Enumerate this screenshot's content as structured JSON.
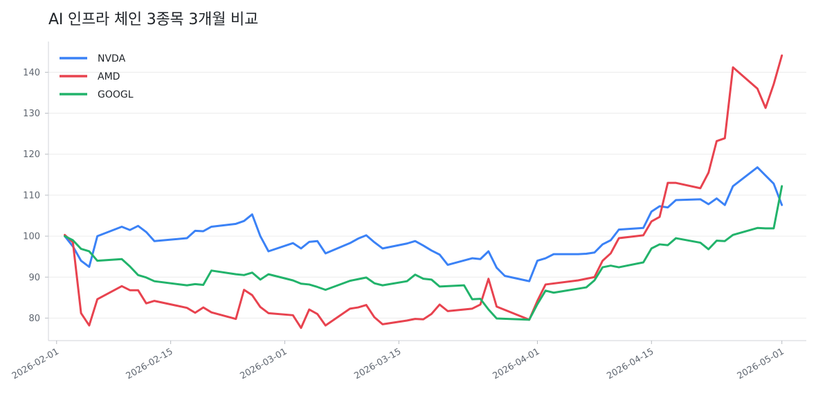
{
  "title": "AI 인프라 체인 3종목 3개월 비교",
  "chart_data": {
    "type": "line",
    "title": "AI 인프라 체인 3종목 3개월 비교",
    "xlabel": "",
    "ylabel": "",
    "x_type": "date",
    "xlim": [
      "2026-01-31",
      "2026-05-04"
    ],
    "ylim": [
      74.5,
      147.5
    ],
    "y_ticks": [
      80,
      90,
      100,
      110,
      120,
      130,
      140
    ],
    "x_ticks": [
      "2026-02-01",
      "2026-02-15",
      "2026-03-01",
      "2026-03-15",
      "2026-04-01",
      "2026-04-15",
      "2026-05-01"
    ],
    "grid": "horizontal",
    "legend_position": "top-left",
    "series": [
      {
        "name": "NVDA",
        "color": "#3b82f6",
        "points": [
          [
            "2026-02-02",
            100.0
          ],
          [
            "2026-02-03",
            97.5
          ],
          [
            "2026-02-04",
            94.0
          ],
          [
            "2026-02-05",
            92.5
          ],
          [
            "2026-02-06",
            100.0
          ],
          [
            "2026-02-09",
            102.3
          ],
          [
            "2026-02-10",
            101.5
          ],
          [
            "2026-02-11",
            102.5
          ],
          [
            "2026-02-12",
            101.0
          ],
          [
            "2026-02-13",
            98.8
          ],
          [
            "2026-02-17",
            99.5
          ],
          [
            "2026-02-18",
            101.3
          ],
          [
            "2026-02-19",
            101.2
          ],
          [
            "2026-02-20",
            102.3
          ],
          [
            "2026-02-23",
            103.0
          ],
          [
            "2026-02-24",
            103.7
          ],
          [
            "2026-02-25",
            105.3
          ],
          [
            "2026-02-26",
            100.0
          ],
          [
            "2026-02-27",
            96.3
          ],
          [
            "2026-03-02",
            98.3
          ],
          [
            "2026-03-03",
            97.0
          ],
          [
            "2026-03-04",
            98.6
          ],
          [
            "2026-03-05",
            98.8
          ],
          [
            "2026-03-06",
            95.8
          ],
          [
            "2026-03-09",
            98.3
          ],
          [
            "2026-03-10",
            99.4
          ],
          [
            "2026-03-11",
            100.2
          ],
          [
            "2026-03-12",
            98.5
          ],
          [
            "2026-03-13",
            97.0
          ],
          [
            "2026-03-16",
            98.2
          ],
          [
            "2026-03-17",
            98.8
          ],
          [
            "2026-03-18",
            97.7
          ],
          [
            "2026-03-19",
            96.5
          ],
          [
            "2026-03-20",
            95.5
          ],
          [
            "2026-03-21",
            93.0
          ],
          [
            "2026-03-24",
            94.6
          ],
          [
            "2026-03-25",
            94.4
          ],
          [
            "2026-03-26",
            96.3
          ],
          [
            "2026-03-27",
            92.3
          ],
          [
            "2026-03-28",
            90.3
          ],
          [
            "2026-03-31",
            89.0
          ],
          [
            "2026-04-01",
            94.0
          ],
          [
            "2026-04-02",
            94.6
          ],
          [
            "2026-04-03",
            95.6
          ],
          [
            "2026-04-06",
            95.6
          ],
          [
            "2026-04-07",
            95.7
          ],
          [
            "2026-04-08",
            96.0
          ],
          [
            "2026-04-09",
            98.0
          ],
          [
            "2026-04-10",
            99.0
          ],
          [
            "2026-04-11",
            101.6
          ],
          [
            "2026-04-14",
            102.0
          ],
          [
            "2026-04-15",
            106.0
          ],
          [
            "2026-04-16",
            107.3
          ],
          [
            "2026-04-17",
            107.0
          ],
          [
            "2026-04-18",
            108.8
          ],
          [
            "2026-04-21",
            109.0
          ],
          [
            "2026-04-22",
            107.8
          ],
          [
            "2026-04-23",
            109.2
          ],
          [
            "2026-04-24",
            107.6
          ],
          [
            "2026-04-25",
            112.2
          ],
          [
            "2026-04-28",
            116.8
          ],
          [
            "2026-04-29",
            114.8
          ],
          [
            "2026-04-30",
            112.8
          ],
          [
            "2026-05-01",
            107.6
          ]
        ]
      },
      {
        "name": "AMD",
        "color": "#e8434f",
        "points": [
          [
            "2026-02-02",
            100.3
          ],
          [
            "2026-02-03",
            98.5
          ],
          [
            "2026-02-04",
            81.2
          ],
          [
            "2026-02-05",
            78.2
          ],
          [
            "2026-02-06",
            84.6
          ],
          [
            "2026-02-09",
            87.8
          ],
          [
            "2026-02-10",
            86.8
          ],
          [
            "2026-02-11",
            86.8
          ],
          [
            "2026-02-12",
            83.6
          ],
          [
            "2026-02-13",
            84.2
          ],
          [
            "2026-02-17",
            82.5
          ],
          [
            "2026-02-18",
            81.3
          ],
          [
            "2026-02-19",
            82.6
          ],
          [
            "2026-02-20",
            81.4
          ],
          [
            "2026-02-23",
            79.8
          ],
          [
            "2026-02-24",
            86.9
          ],
          [
            "2026-02-25",
            85.6
          ],
          [
            "2026-02-26",
            82.7
          ],
          [
            "2026-02-27",
            81.2
          ],
          [
            "2026-03-02",
            80.7
          ],
          [
            "2026-03-03",
            77.6
          ],
          [
            "2026-03-04",
            82.1
          ],
          [
            "2026-03-05",
            81.0
          ],
          [
            "2026-03-06",
            78.2
          ],
          [
            "2026-03-09",
            82.3
          ],
          [
            "2026-03-10",
            82.6
          ],
          [
            "2026-03-11",
            83.2
          ],
          [
            "2026-03-12",
            80.2
          ],
          [
            "2026-03-13",
            78.5
          ],
          [
            "2026-03-16",
            79.4
          ],
          [
            "2026-03-17",
            79.8
          ],
          [
            "2026-03-18",
            79.7
          ],
          [
            "2026-03-19",
            81.0
          ],
          [
            "2026-03-20",
            83.3
          ],
          [
            "2026-03-21",
            81.7
          ],
          [
            "2026-03-24",
            82.3
          ],
          [
            "2026-03-25",
            83.3
          ],
          [
            "2026-03-26",
            89.6
          ],
          [
            "2026-03-27",
            82.8
          ],
          [
            "2026-03-31",
            79.6
          ],
          [
            "2026-04-01",
            84.2
          ],
          [
            "2026-04-02",
            88.2
          ],
          [
            "2026-04-06",
            89.2
          ],
          [
            "2026-04-07",
            89.6
          ],
          [
            "2026-04-08",
            90.0
          ],
          [
            "2026-04-09",
            94.0
          ],
          [
            "2026-04-10",
            95.8
          ],
          [
            "2026-04-11",
            99.5
          ],
          [
            "2026-04-14",
            100.2
          ],
          [
            "2026-04-15",
            103.6
          ],
          [
            "2026-04-16",
            104.7
          ],
          [
            "2026-04-17",
            113.0
          ],
          [
            "2026-04-18",
            113.0
          ],
          [
            "2026-04-21",
            111.7
          ],
          [
            "2026-04-22",
            115.5
          ],
          [
            "2026-04-23",
            123.2
          ],
          [
            "2026-04-24",
            123.9
          ],
          [
            "2026-04-25",
            141.2
          ],
          [
            "2026-04-28",
            136.0
          ],
          [
            "2026-04-29",
            131.3
          ],
          [
            "2026-04-30",
            137.1
          ],
          [
            "2026-05-01",
            144.1
          ]
        ]
      },
      {
        "name": "GOOGL",
        "color": "#22b36b",
        "points": [
          [
            "2026-02-02",
            100.0
          ],
          [
            "2026-02-03",
            99.0
          ],
          [
            "2026-02-04",
            96.9
          ],
          [
            "2026-02-05",
            96.3
          ],
          [
            "2026-02-06",
            94.0
          ],
          [
            "2026-02-09",
            94.4
          ],
          [
            "2026-02-10",
            92.6
          ],
          [
            "2026-02-11",
            90.5
          ],
          [
            "2026-02-12",
            89.9
          ],
          [
            "2026-02-13",
            89.0
          ],
          [
            "2026-02-17",
            88.0
          ],
          [
            "2026-02-18",
            88.3
          ],
          [
            "2026-02-19",
            88.1
          ],
          [
            "2026-02-20",
            91.6
          ],
          [
            "2026-02-23",
            90.7
          ],
          [
            "2026-02-24",
            90.5
          ],
          [
            "2026-02-25",
            91.1
          ],
          [
            "2026-02-26",
            89.4
          ],
          [
            "2026-02-27",
            90.7
          ],
          [
            "2026-03-02",
            89.2
          ],
          [
            "2026-03-03",
            88.4
          ],
          [
            "2026-03-04",
            88.2
          ],
          [
            "2026-03-05",
            87.6
          ],
          [
            "2026-03-06",
            86.9
          ],
          [
            "2026-03-09",
            89.1
          ],
          [
            "2026-03-10",
            89.5
          ],
          [
            "2026-03-11",
            89.9
          ],
          [
            "2026-03-12",
            88.5
          ],
          [
            "2026-03-13",
            88.0
          ],
          [
            "2026-03-16",
            89.0
          ],
          [
            "2026-03-17",
            90.6
          ],
          [
            "2026-03-18",
            89.6
          ],
          [
            "2026-03-19",
            89.4
          ],
          [
            "2026-03-20",
            87.7
          ],
          [
            "2026-03-23",
            88.0
          ],
          [
            "2026-03-24",
            84.6
          ],
          [
            "2026-03-25",
            84.7
          ],
          [
            "2026-03-26",
            82.1
          ],
          [
            "2026-03-27",
            79.9
          ],
          [
            "2026-03-31",
            79.6
          ],
          [
            "2026-04-01",
            83.4
          ],
          [
            "2026-04-02",
            86.7
          ],
          [
            "2026-04-03",
            86.2
          ],
          [
            "2026-04-07",
            87.5
          ],
          [
            "2026-04-08",
            89.2
          ],
          [
            "2026-04-09",
            92.4
          ],
          [
            "2026-04-10",
            92.8
          ],
          [
            "2026-04-11",
            92.4
          ],
          [
            "2026-04-14",
            93.6
          ],
          [
            "2026-04-15",
            97.0
          ],
          [
            "2026-04-16",
            98.0
          ],
          [
            "2026-04-17",
            97.8
          ],
          [
            "2026-04-18",
            99.5
          ],
          [
            "2026-04-21",
            98.4
          ],
          [
            "2026-04-22",
            96.8
          ],
          [
            "2026-04-23",
            98.9
          ],
          [
            "2026-04-24",
            98.8
          ],
          [
            "2026-04-25",
            100.3
          ],
          [
            "2026-04-28",
            102.0
          ],
          [
            "2026-04-29",
            101.9
          ],
          [
            "2026-04-30",
            101.9
          ],
          [
            "2026-05-01",
            112.2
          ]
        ]
      }
    ]
  }
}
